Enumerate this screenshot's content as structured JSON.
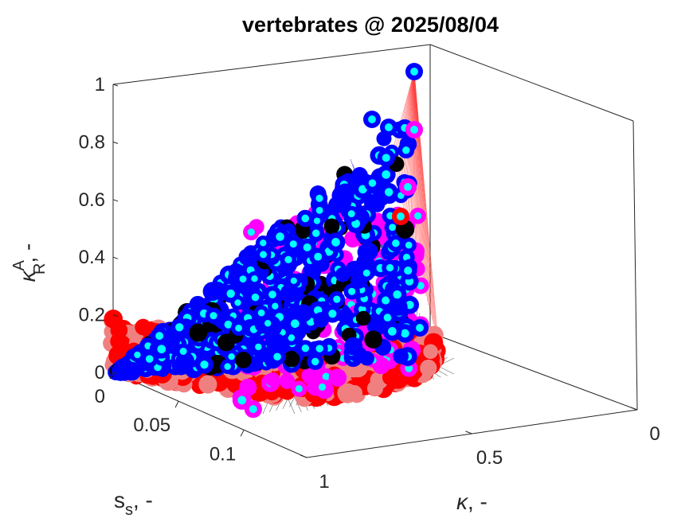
{
  "chart_data": {
    "type": "scatter3d",
    "title": "vertebrates @ 2025/08/04",
    "axes": {
      "z": {
        "label": "κ",
        "label_sup": "A",
        "label_sub": "R",
        "label_suffix": ", -",
        "ticks": [
          "0",
          "0.2",
          "0.4",
          "0.6",
          "0.8",
          "1"
        ],
        "range": [
          0,
          1
        ]
      },
      "s": {
        "label": "s",
        "label_sub": "s",
        "label_suffix": ", -",
        "ticks": [
          "0",
          "0.05",
          "0.1"
        ],
        "range": [
          0,
          0.148
        ]
      },
      "k": {
        "label": "κ",
        "label_suffix": ", -",
        "ticks": [
          "0",
          "0.5",
          "1"
        ],
        "range": [
          0,
          1
        ]
      }
    },
    "grid": false,
    "box": true,
    "series": [
      {
        "color": "#0000ff",
        "role": "main-points"
      },
      {
        "color": "#ff0000",
        "role": "low-points"
      },
      {
        "color": "#ff00ff",
        "role": "mid-points"
      },
      {
        "color": "#f08080",
        "role": "salmon-points"
      },
      {
        "color": "#000000",
        "role": "dark-points"
      },
      {
        "color": "#00ffff",
        "role": "inner-dots"
      }
    ],
    "surface_colors": {
      "blue_mesh": "#0000cc",
      "red_mesh": "#ff0000",
      "black_mesh": "#000000"
    }
  }
}
